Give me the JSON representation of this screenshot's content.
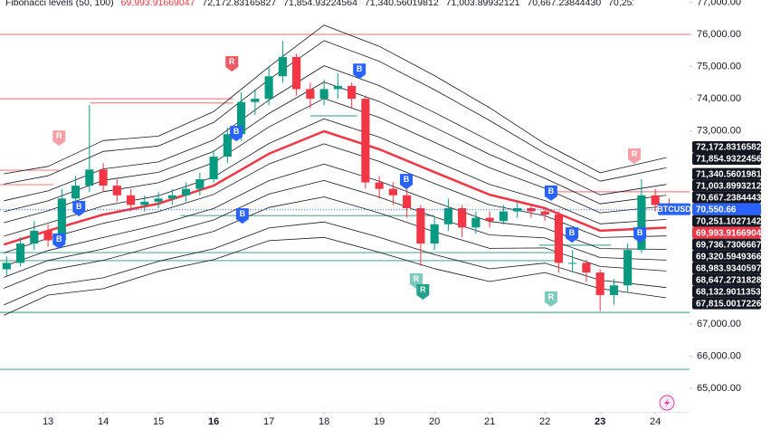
{
  "chart_data": {
    "type": "candlestick",
    "indicator_label": "Fibonacci levels (50, 100)",
    "symbol": "BTCUSD",
    "price_label": "70,550.66",
    "up_color": "#089981",
    "down_color": "#f23645",
    "xlim": [
      12.13,
      24.62
    ],
    "ylim": [
      64270,
      77070
    ],
    "xticks": [
      13,
      14,
      15,
      16,
      17,
      18,
      19,
      20,
      21,
      22,
      23,
      24
    ],
    "bold_xticks": [
      16,
      23
    ],
    "yticks": [
      {
        "value": 77000,
        "label": "77,000.00"
      },
      {
        "value": 76000,
        "label": "76,000.00"
      },
      {
        "value": 75000,
        "label": "75,000.00"
      },
      {
        "value": 74000,
        "label": "74,000.00"
      },
      {
        "value": 73000,
        "label": "73,000.00"
      },
      {
        "value": 67000,
        "label": "67,000.00"
      },
      {
        "value": 66000,
        "label": "66,000.00"
      },
      {
        "value": 65000,
        "label": "65,000.00"
      }
    ],
    "x": [
      12.25,
      12.5,
      12.75,
      13,
      13.25,
      13.5,
      13.75,
      14,
      14.25,
      14.5,
      14.75,
      15,
      15.25,
      15.5,
      15.75,
      16,
      16.25,
      16.5,
      16.75,
      17,
      17.25,
      17.5,
      17.75,
      18,
      18.25,
      18.5,
      18.75,
      19,
      19.25,
      19.5,
      19.75,
      20,
      20.25,
      20.5,
      20.75,
      21,
      21.25,
      21.5,
      21.75,
      22,
      22.25,
      22.5,
      22.75,
      23,
      23.25,
      23.5,
      23.75,
      24,
      24.25
    ],
    "open": [
      68700,
      68900,
      69500,
      69900,
      69600,
      70900,
      71300,
      71800,
      71300,
      71000,
      70700,
      70800,
      70900,
      71000,
      71200,
      71500,
      72200,
      72900,
      73900,
      74000,
      74700,
      75300,
      74300,
      74000,
      74300,
      74400,
      74000,
      71400,
      71200,
      71000,
      70600,
      69500,
      70100,
      70600,
      70000,
      70300,
      70200,
      70500,
      70600,
      70500,
      70400,
      68900,
      68900,
      68600,
      67900,
      68200,
      69300,
      71000,
      70700
    ],
    "high": [
      69100,
      69700,
      70200,
      70100,
      71200,
      71600,
      73800,
      72000,
      71500,
      71200,
      71000,
      71100,
      71200,
      71400,
      71700,
      72400,
      73100,
      74200,
      74300,
      75000,
      75800,
      75400,
      74500,
      74600,
      74800,
      74500,
      74100,
      71600,
      71400,
      71200,
      70700,
      70300,
      70900,
      70700,
      70500,
      70500,
      70700,
      70800,
      70700,
      70600,
      70500,
      69300,
      69000,
      68700,
      68400,
      69500,
      71500,
      71200,
      70900
    ],
    "low": [
      68500,
      68800,
      69300,
      69400,
      69500,
      70700,
      71100,
      71100,
      70800,
      70500,
      70500,
      70600,
      70700,
      70800,
      71000,
      71400,
      72000,
      72700,
      73500,
      73800,
      74500,
      74100,
      73700,
      73800,
      74000,
      73700,
      71200,
      70900,
      70700,
      70300,
      68800,
      69300,
      69900,
      69700,
      69800,
      70000,
      70100,
      70300,
      70300,
      70200,
      68600,
      68600,
      68300,
      67400,
      67600,
      68000,
      69200,
      70500,
      70400
    ],
    "close": [
      68900,
      69500,
      69900,
      69600,
      70900,
      71300,
      71800,
      71300,
      71000,
      70700,
      70800,
      70900,
      71000,
      71200,
      71500,
      72200,
      72900,
      73900,
      74000,
      74700,
      75300,
      74300,
      74000,
      74300,
      74400,
      74000,
      71400,
      71200,
      71000,
      70600,
      69500,
      70100,
      70600,
      70000,
      70300,
      70200,
      70500,
      70600,
      70500,
      70400,
      68900,
      68900,
      68600,
      67900,
      68200,
      69300,
      71000,
      70700,
      70550.66
    ],
    "band_x": [
      12.2,
      13,
      14,
      15,
      16,
      17,
      18,
      19,
      20,
      21,
      22,
      23,
      24.2
    ],
    "basis": {
      "color": "#f23645",
      "last_label": "69,993.91669047",
      "values": [
        69470,
        69900,
        70400,
        70740,
        71300,
        72290,
        72990,
        72430,
        71720,
        71020,
        70600,
        69900,
        69993.91669047
      ]
    },
    "bands": [
      {
        "color": "#131722",
        "last_label": "72,172.83165827",
        "values": [
          71670,
          71900,
          72700,
          72840,
          73600,
          74990,
          76290,
          75630,
          74720,
          73720,
          72600,
          71700,
          72172.83165827
        ]
      },
      {
        "color": "#131722",
        "last_label": "71,854.93224564",
        "values": [
          71349,
          71608,
          72364,
          72533,
          73264,
          74596,
          75808,
          75163,
          74282,
          73326,
          72308,
          71437,
          71854.93224564
        ]
      },
      {
        "color": "#131722",
        "last_label": "71,340.56019812",
        "values": [
          70830,
          71136,
          71821,
          72038,
          72721,
          73959,
          75029,
          74408,
          73574,
          72689,
          71836,
          71012,
          71340.56019812
        ]
      },
      {
        "color": "#131722",
        "last_label": "71,003.89932121",
        "values": [
          70490,
          70827,
          71466,
          71713,
          72366,
          73541,
          74520,
          73913,
          73111,
          72271,
          71527,
          70734,
          71003.89932121
        ]
      },
      {
        "color": "#131722",
        "last_label": "70,667.23844430",
        "values": [
          70150,
          70518,
          71111,
          71389,
          72011,
          73124,
          74010,
          73419,
          72647,
          71854,
          71218,
          70456,
          70667.2384443
        ]
      },
      {
        "color": "#131722",
        "last_label": "70,251.10271422",
        "values": [
          69730,
          70136,
          70671,
          70988,
          71571,
          72609,
          73379,
          72808,
          72074,
          71339,
          70836,
          70112,
          70251.10271422
        ]
      },
      {
        "color": "#131722",
        "last_label": "69,736.73066671",
        "values": [
          69210,
          69664,
          70129,
          70492,
          71029,
          71971,
          72601,
          72052,
          71366,
          70701,
          70364,
          69688,
          69736.73066671
        ]
      },
      {
        "color": "#131722",
        "last_label": "69,320.59493664",
        "values": [
          68790,
          69282,
          69689,
          70091,
          70589,
          71456,
          71970,
          71441,
          70793,
          70186,
          69982,
          69344,
          69320.59493664
        ]
      },
      {
        "color": "#131722",
        "last_label": "68,983.93405973",
        "values": [
          68450,
          68973,
          69334,
          69767,
          70234,
          71039,
          71460,
          70947,
          70329,
          69769,
          69673,
          69066,
          68983.93405973
        ]
      },
      {
        "color": "#131722",
        "last_label": "68,647.27318281",
        "values": [
          68110,
          68664,
          68979,
          69442,
          69879,
          70621,
          70951,
          70452,
          69866,
          69351,
          69364,
          68788,
          68647.27318281
        ]
      },
      {
        "color": "#131722",
        "last_label": "68,132.90113530",
        "values": [
          67591,
          68192,
          68436,
          68947,
          69336,
          69984,
          70172,
          69697,
          69158,
          68714,
          68892,
          68363,
          68132.9011353
        ]
      },
      {
        "color": "#131722",
        "last_label": "67,815.00172267",
        "values": [
          67270,
          67900,
          68100,
          68640,
          69000,
          69590,
          69690,
          69230,
          68720,
          68320,
          68600,
          68100,
          67815.00172267
        ]
      }
    ],
    "hlines": [
      {
        "value": 76000,
        "color": "#f7868b",
        "x": [
          12.13,
          24.62
        ]
      },
      {
        "value": 74000,
        "color": "#f7868b",
        "x": [
          12.13,
          16.35
        ]
      },
      {
        "value": 73870,
        "color": "#f7868b",
        "x": [
          13.77,
          16.35
        ]
      },
      {
        "value": 73470,
        "color": "#5aa99b",
        "x": [
          17.75,
          18.6
        ]
      },
      {
        "value": 71780,
        "color": "#f7868b",
        "x": [
          12.13,
          13.2
        ]
      },
      {
        "value": 71330,
        "color": "#f7868b",
        "x": [
          12.13,
          13.1
        ]
      },
      {
        "value": 71110,
        "color": "#f7868b",
        "x": [
          22.1,
          24.62
        ]
      },
      {
        "value": 70370,
        "color": "#5aa99b",
        "x": [
          15.4,
          20.0
        ]
      },
      {
        "value": 69450,
        "color": "#5aa99b",
        "x": [
          21.9,
          23.2
        ]
      },
      {
        "value": 69220,
        "color": "#5aa99b",
        "x": [
          12.13,
          22.2
        ]
      },
      {
        "value": 68970,
        "color": "#5aa99b",
        "x": [
          12.13,
          22.2
        ]
      },
      {
        "value": 67360,
        "color": "#5aa99b",
        "x": [
          12.13,
          24.62
        ]
      },
      {
        "value": 65590,
        "color": "#5aa99b",
        "x": [
          12.13,
          24.62
        ]
      }
    ],
    "signals": [
      {
        "x": 13.56,
        "price": 70600,
        "label": "B",
        "color": "#2962ff"
      },
      {
        "x": 13.2,
        "price": 69590,
        "label": "B",
        "color": "#2962ff"
      },
      {
        "x": 13.2,
        "price": 72790,
        "label": "R",
        "color": "#f7a1a6"
      },
      {
        "x": 16.33,
        "price": 75100,
        "label": "R",
        "color": "#f05a62"
      },
      {
        "x": 16.41,
        "price": 72930,
        "label": "B",
        "color": "#2962ff"
      },
      {
        "x": 16.52,
        "price": 70370,
        "label": "B",
        "color": "#2962ff"
      },
      {
        "x": 18.64,
        "price": 74870,
        "label": "B",
        "color": "#2962ff"
      },
      {
        "x": 19.49,
        "price": 71440,
        "label": "B",
        "color": "#2962ff"
      },
      {
        "x": 19.67,
        "price": 68350,
        "label": "R",
        "color": "#7ccbbd"
      },
      {
        "x": 19.79,
        "price": 68010,
        "label": "R",
        "color": "#22a08a"
      },
      {
        "x": 22.11,
        "price": 71080,
        "label": "B",
        "color": "#2962ff"
      },
      {
        "x": 22.49,
        "price": 69780,
        "label": "B",
        "color": "#2962ff"
      },
      {
        "x": 22.11,
        "price": 67790,
        "label": "R",
        "color": "#7ccbbd"
      },
      {
        "x": 23.62,
        "price": 72230,
        "label": "R",
        "color": "#f7a1a6"
      },
      {
        "x": 23.72,
        "price": 69780,
        "label": "B",
        "color": "#2962ff"
      }
    ]
  }
}
